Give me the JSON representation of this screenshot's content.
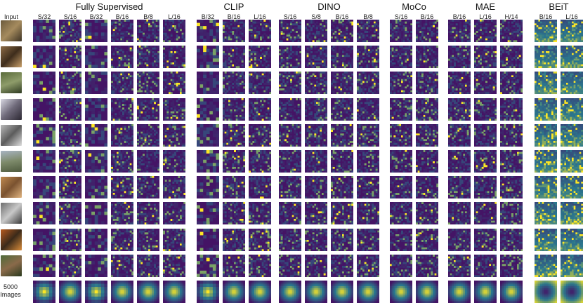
{
  "input_label": "Input",
  "last_row_label": "5000 Images",
  "groups": [
    {
      "title": "Fully Supervised",
      "models": [
        "S/32",
        "S/16",
        "B/32",
        "B/16",
        "B/8",
        "L/16"
      ]
    },
    {
      "title": "CLIP",
      "models": [
        "B/32",
        "B/16",
        "L/16"
      ]
    },
    {
      "title": "DINO",
      "models": [
        "S/16",
        "S/8",
        "B/16",
        "B/8"
      ]
    },
    {
      "title": "MoCo",
      "models": [
        "S/16",
        "B/16"
      ]
    },
    {
      "title": "MAE",
      "models": [
        "B/16",
        "L/16",
        "H/14"
      ]
    },
    {
      "title": "BEiT",
      "models": [
        "B/16",
        "L/16"
      ]
    }
  ],
  "rows": 11,
  "colors": {
    "background": "#ffffff",
    "map_low": "#441465",
    "map_mid": "#2a788e",
    "map_high": "#fde725"
  }
}
